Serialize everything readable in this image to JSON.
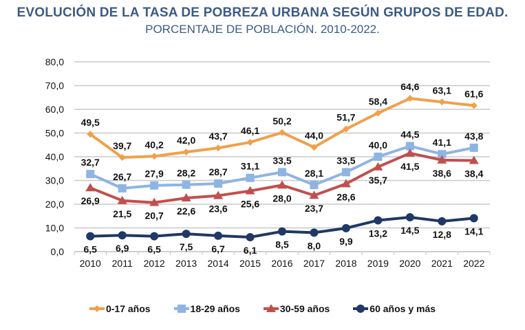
{
  "title": "EVOLUCIÓN DE LA TASA DE POBREZA URBANA SEGÚN GRUPOS DE EDAD.",
  "subtitle": "PORCENTAJE DE POBLACIÓN. 2010-2022.",
  "chart_data": {
    "type": "line",
    "title": "EVOLUCIÓN DE LA TASA DE POBREZA URBANA SEGÚN GRUPOS DE EDAD.",
    "subtitle": "PORCENTAJE DE POBLACIÓN. 2010-2022.",
    "xlabel": "",
    "ylabel": "",
    "x": [
      "2010",
      "2011",
      "2012",
      "2013",
      "2014",
      "2015",
      "2016",
      "2017",
      "2018",
      "2019",
      "2020",
      "2021",
      "2022"
    ],
    "ylim": [
      0,
      80
    ],
    "yticks": [
      0,
      10,
      20,
      30,
      40,
      50,
      60,
      70,
      80
    ],
    "ytick_labels": [
      "0,0",
      "10,0",
      "20,0",
      "30,0",
      "40,0",
      "50,0",
      "60,0",
      "70,0",
      "80,0"
    ],
    "grid": true,
    "legend_position": "bottom",
    "series": [
      {
        "name": "0-17 años",
        "color": "#f0a04b",
        "marker": "diamond",
        "label_position": "above",
        "values": [
          49.5,
          39.7,
          40.2,
          42.0,
          43.7,
          46.1,
          50.2,
          44.0,
          51.7,
          58.4,
          64.6,
          63.1,
          61.6
        ],
        "labels": [
          "49,5",
          "39,7",
          "40,2",
          "42,0",
          "43,7",
          "46,1",
          "50,2",
          "44,0",
          "51,7",
          "58,4",
          "64,6",
          "63,1",
          "61,6"
        ]
      },
      {
        "name": "18-29 años",
        "color": "#8eb4e3",
        "marker": "square",
        "label_position": "above",
        "values": [
          32.7,
          26.7,
          27.9,
          28.2,
          28.7,
          31.1,
          33.5,
          28.1,
          33.5,
          40.0,
          44.5,
          41.1,
          43.8
        ],
        "labels": [
          "32,7",
          "26,7",
          "27,9",
          "28,2",
          "28,7",
          "31,1",
          "33,5",
          "28,1",
          "33,5",
          "40,0",
          "44,5",
          "41,1",
          "43,8"
        ]
      },
      {
        "name": "30-59 años",
        "color": "#c0504d",
        "marker": "triangle",
        "label_position": "below",
        "values": [
          26.9,
          21.5,
          20.7,
          22.6,
          23.6,
          25.6,
          28.0,
          23.7,
          28.6,
          35.7,
          41.5,
          38.6,
          38.4
        ],
        "labels": [
          "26,9",
          "21,5",
          "20,7",
          "22,6",
          "23,6",
          "25,6",
          "28,0",
          "23,7",
          "28,6",
          "35,7",
          "41,5",
          "38,6",
          "38,4"
        ]
      },
      {
        "name": "60 años y más",
        "color": "#1f3864",
        "marker": "circle",
        "label_position": "below",
        "values": [
          6.5,
          6.9,
          6.5,
          7.5,
          6.7,
          6.1,
          8.5,
          8.0,
          9.9,
          13.2,
          14.5,
          12.8,
          14.1
        ],
        "labels": [
          "6,5",
          "6,9",
          "6,5",
          "7,5",
          "6,7",
          "6,1",
          "8,5",
          "8,0",
          "9,9",
          "13,2",
          "14,5",
          "12,8",
          "14,1"
        ]
      }
    ]
  }
}
